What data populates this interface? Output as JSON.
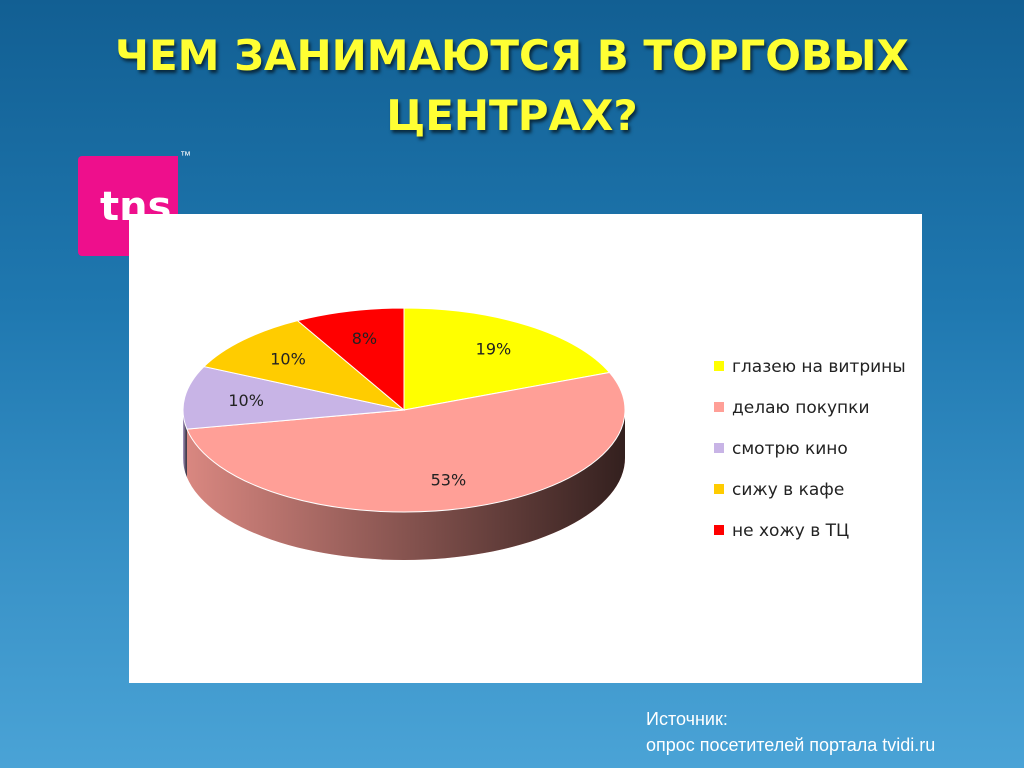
{
  "chart_data": {
    "type": "pie",
    "title": "ЧЕМ ЗАНИМАЮТСЯ В ТОРГОВЫХ ЦЕНТРАХ?",
    "categories": [
      "глазею на витрины",
      "делаю покупки",
      "смотрю кино",
      "сижу в кафе",
      "не хожу в ТЦ"
    ],
    "values": [
      19,
      53,
      10,
      10,
      8
    ],
    "value_labels": [
      "19%",
      "53%",
      "10%",
      "10%",
      "8%"
    ],
    "colors": [
      "#ffff00",
      "#ff9f97",
      "#c8b4e6",
      "#ffcc00",
      "#ff0000"
    ],
    "legend": "right"
  },
  "logo": {
    "text": "tns",
    "mark": "™"
  },
  "source": {
    "label": "Источник:",
    "text": "опрос посетителей портала tvidi.ru"
  }
}
